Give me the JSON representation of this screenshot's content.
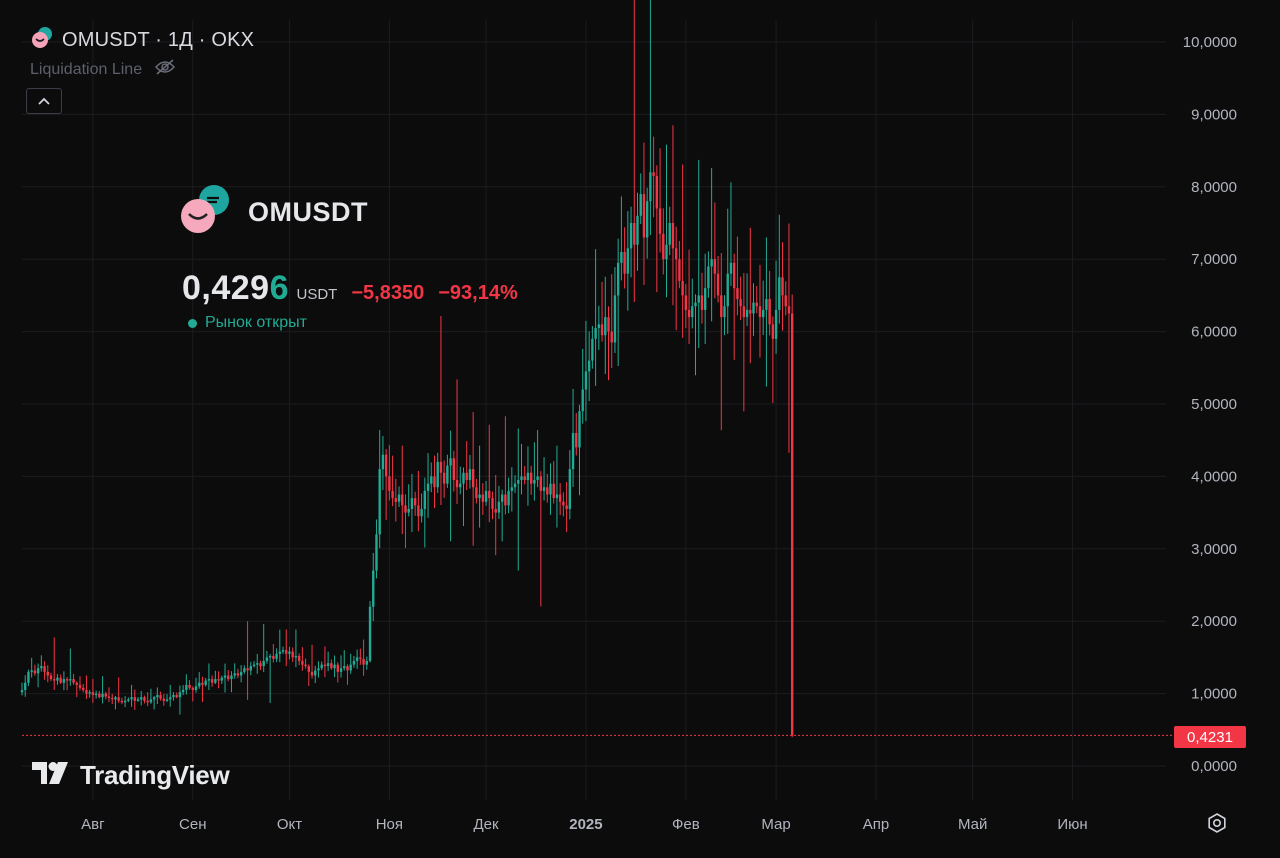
{
  "header": {
    "symbol_line": "OMUSDT · 1Д · OKX",
    "liquidation_label": "Liquidation Line"
  },
  "overlay": {
    "symbol": "OMUSDT",
    "price_main": "0,429",
    "price_last_digit": "6",
    "currency": "USDT",
    "change_abs": "−5,8350",
    "change_pct": "−93,14%",
    "market_status": "Рынок открыт"
  },
  "brand": {
    "name": "TradingView"
  },
  "last_price_tag": "0,4231",
  "colors": {
    "background": "#0c0c0d",
    "up": "#22ab94",
    "down": "#f23645",
    "grid": "#1b1c1f",
    "axis_text": "#b2b5be"
  },
  "icons": [
    "om-coin-icon",
    "hidden-eye-icon",
    "chevron-up-icon",
    "tradingview-logo-icon",
    "settings-gear-icon"
  ],
  "chart_data": {
    "type": "candlestick",
    "symbol": "OMUSDT",
    "interval": "1Д",
    "exchange": "OKX",
    "y_tick_labels": [
      "0,0000",
      "1,0000",
      "2,0000",
      "3,0000",
      "4,0000",
      "5,0000",
      "6,0000",
      "7,0000",
      "8,0000",
      "9,0000",
      "10,0000"
    ],
    "y_tick_values": [
      0,
      1,
      2,
      3,
      4,
      5,
      6,
      7,
      8,
      9,
      10
    ],
    "ylim": [
      -0.1,
      10.35
    ],
    "x_tick_labels": [
      "Авг",
      "Сен",
      "Окт",
      "Ноя",
      "Дек",
      "2025",
      "Фев",
      "Мар",
      "Апр",
      "Май",
      "Июн"
    ],
    "x_tick_bold": [
      false,
      false,
      false,
      false,
      false,
      true,
      false,
      false,
      false,
      false,
      false
    ],
    "start_date": "2024-07-10",
    "axis_start_date": "2024-07-10",
    "axis_end_date": "2025-06-30",
    "last_price": 0.4231,
    "close_series": [
      1.05,
      1.15,
      1.3,
      1.32,
      1.28,
      1.35,
      1.38,
      1.3,
      1.25,
      1.2,
      1.18,
      1.22,
      1.15,
      1.2,
      1.18,
      1.2,
      1.15,
      1.12,
      1.08,
      1.05,
      1.0,
      1.02,
      0.98,
      1.0,
      0.95,
      1.0,
      0.96,
      0.94,
      0.92,
      0.95,
      0.9,
      0.88,
      0.9,
      0.92,
      0.95,
      0.9,
      0.92,
      0.95,
      0.9,
      0.88,
      0.92,
      0.95,
      0.98,
      0.93,
      0.9,
      0.92,
      0.95,
      0.98,
      0.95,
      1.02,
      1.05,
      1.12,
      1.08,
      1.05,
      1.1,
      1.15,
      1.12,
      1.18,
      1.2,
      1.15,
      1.2,
      1.18,
      1.22,
      1.25,
      1.2,
      1.25,
      1.28,
      1.25,
      1.3,
      1.35,
      1.32,
      1.38,
      1.4,
      1.42,
      1.38,
      1.45,
      1.5,
      1.52,
      1.48,
      1.55,
      1.58,
      1.6,
      1.55,
      1.58,
      1.5,
      1.52,
      1.45,
      1.4,
      1.38,
      1.3,
      1.25,
      1.32,
      1.35,
      1.4,
      1.38,
      1.42,
      1.35,
      1.4,
      1.3,
      1.35,
      1.38,
      1.32,
      1.4,
      1.45,
      1.5,
      1.48,
      1.4,
      1.45,
      2.2,
      2.7,
      3.2,
      4.1,
      4.3,
      4.0,
      3.8,
      3.7,
      3.65,
      3.75,
      3.6,
      3.5,
      3.55,
      3.7,
      3.6,
      3.45,
      3.55,
      3.8,
      3.9,
      4.0,
      3.85,
      4.2,
      4.05,
      3.9,
      4.15,
      4.25,
      3.95,
      3.85,
      3.9,
      4.05,
      3.95,
      4.1,
      3.85,
      3.7,
      3.75,
      3.65,
      3.8,
      3.7,
      3.55,
      3.5,
      3.65,
      3.75,
      3.6,
      3.8,
      3.85,
      3.9,
      3.95,
      4.0,
      3.95,
      4.05,
      3.9,
      3.95,
      4.0,
      3.8,
      3.85,
      3.75,
      3.9,
      3.7,
      3.75,
      3.65,
      3.6,
      3.55,
      4.1,
      4.6,
      4.4,
      4.9,
      5.2,
      5.45,
      5.6,
      5.9,
      6.05,
      6.1,
      5.95,
      6.2,
      6.0,
      5.85,
      6.5,
      6.95,
      7.1,
      6.8,
      7.15,
      7.5,
      7.2,
      7.6,
      7.9,
      7.3,
      7.8,
      8.2,
      8.15,
      7.7,
      7.35,
      7.0,
      7.2,
      7.5,
      7.15,
      7.0,
      6.7,
      6.5,
      6.3,
      6.2,
      6.35,
      6.4,
      6.5,
      6.3,
      6.6,
      6.9,
      7.0,
      6.8,
      6.5,
      6.2,
      6.35,
      6.8,
      6.95,
      6.6,
      6.45,
      6.35,
      6.2,
      6.3,
      6.25,
      6.4,
      6.35,
      6.2,
      6.3,
      6.45,
      6.1,
      5.9,
      6.3,
      6.75,
      6.5,
      6.35,
      6.25,
      0.42
    ]
  }
}
